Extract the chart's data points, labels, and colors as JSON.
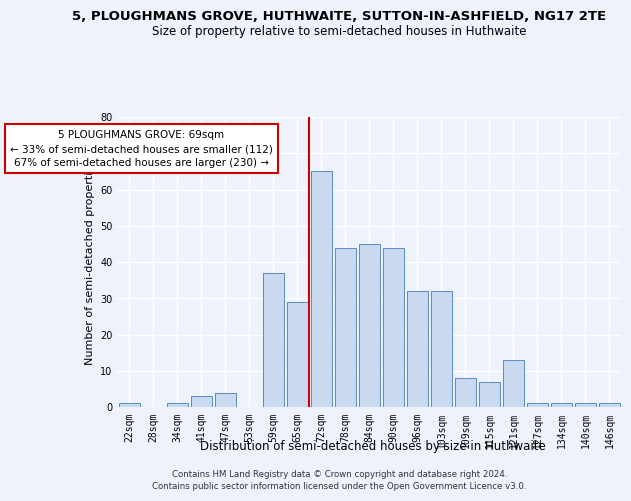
{
  "title": "5, PLOUGHMANS GROVE, HUTHWAITE, SUTTON-IN-ASHFIELD, NG17 2TE",
  "subtitle": "Size of property relative to semi-detached houses in Huthwaite",
  "xlabel": "Distribution of semi-detached houses by size in Huthwaite",
  "ylabel": "Number of semi-detached properties",
  "categories": [
    "22sqm",
    "28sqm",
    "34sqm",
    "41sqm",
    "47sqm",
    "53sqm",
    "59sqm",
    "65sqm",
    "72sqm",
    "78sqm",
    "84sqm",
    "90sqm",
    "96sqm",
    "103sqm",
    "109sqm",
    "115sqm",
    "121sqm",
    "127sqm",
    "134sqm",
    "140sqm",
    "146sqm"
  ],
  "values": [
    1,
    0,
    1,
    3,
    4,
    0,
    37,
    29,
    65,
    44,
    45,
    44,
    32,
    32,
    8,
    7,
    13,
    1,
    1,
    1,
    1
  ],
  "bar_color": "#c9d9f0",
  "bar_edge_color": "#5a8ac6",
  "annotation_title": "5 PLOUGHMANS GROVE: 69sqm",
  "annotation_line1": "← 33% of semi-detached houses are smaller (112)",
  "annotation_line2": "67% of semi-detached houses are larger (230) →",
  "annotation_box_color": "#ffffff",
  "annotation_box_edge": "#cc0000",
  "vline_color": "#cc0000",
  "ylim": [
    0,
    80
  ],
  "yticks": [
    0,
    10,
    20,
    30,
    40,
    50,
    60,
    70,
    80
  ],
  "footer1": "Contains HM Land Registry data © Crown copyright and database right 2024.",
  "footer2": "Contains public sector information licensed under the Open Government Licence v3.0.",
  "bg_color": "#eef2fb",
  "plot_bg_color": "#eef2fb",
  "grid_color": "#ffffff",
  "title_fontsize": 9.5,
  "subtitle_fontsize": 8.5,
  "axis_label_fontsize": 8,
  "tick_fontsize": 7,
  "footer_fontsize": 6.2
}
